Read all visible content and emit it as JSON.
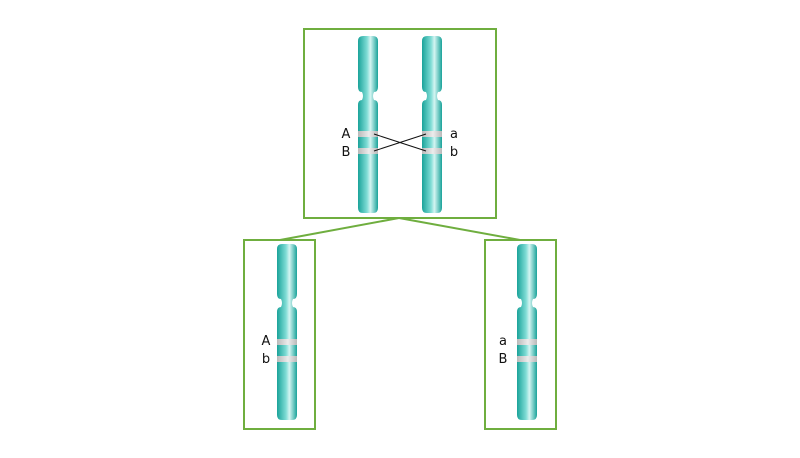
{
  "colors": {
    "frame": "#6fae3f",
    "chromosome_dark": "#1aa39a",
    "chromosome_light": "#c9f1ee",
    "band": "#c8c8c8",
    "crossover_line": "#111111"
  },
  "parent": {
    "left_chromosome": {
      "gene_top": "A",
      "gene_bottom": "B"
    },
    "right_chromosome": {
      "gene_top": "a",
      "gene_bottom": "b"
    }
  },
  "offspring_left": {
    "gene_top": "A",
    "gene_bottom": "b"
  },
  "offspring_right": {
    "gene_top": "a",
    "gene_bottom": "B"
  }
}
